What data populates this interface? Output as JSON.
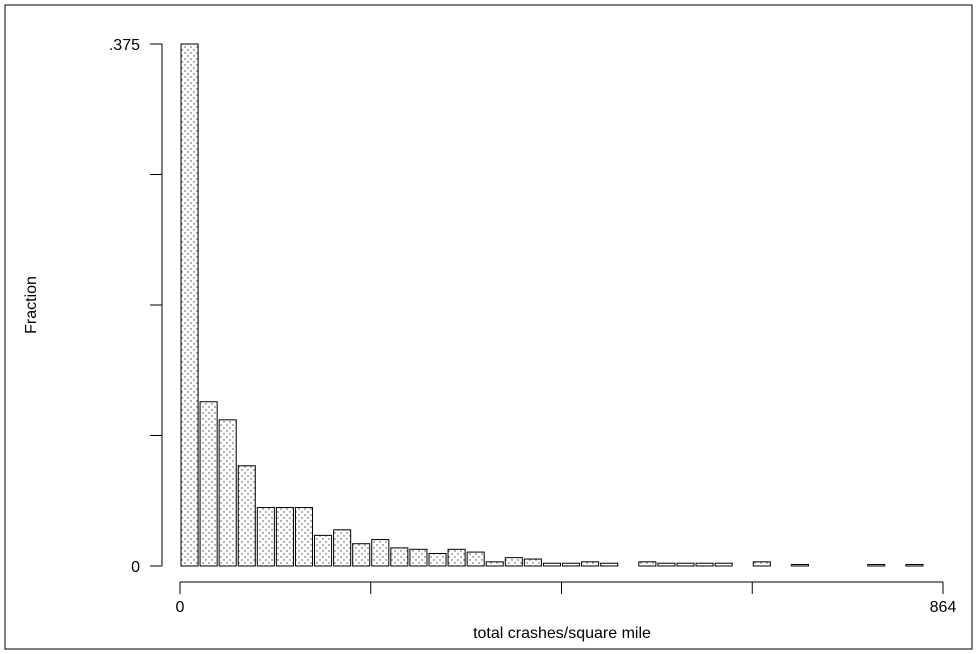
{
  "chart_data": {
    "type": "bar",
    "title": "",
    "xlabel": "total crashes/square mile",
    "ylabel": "Fraction",
    "xlim": [
      0,
      864
    ],
    "ylim": [
      0,
      0.375
    ],
    "x_tick_labels": [
      "0",
      "864"
    ],
    "y_tick_labels": [
      ".375",
      "0"
    ],
    "bin_width": 21.6,
    "series": [
      {
        "values": [
          0.375,
          0.118,
          0.105,
          0.072,
          0.042,
          0.042,
          0.042,
          0.022,
          0.026,
          0.016,
          0.019,
          0.013,
          0.012,
          0.009,
          0.012,
          0.01,
          0.003,
          0.006,
          0.005,
          0.002,
          0.002,
          0.003,
          0.002,
          0,
          0.003,
          0.002,
          0.002,
          0.002,
          0.002,
          0,
          0.003,
          0,
          0.0005,
          0,
          0,
          0,
          0.0005,
          0,
          0.0005,
          0,
          0,
          0,
          0,
          0,
          0,
          0,
          0,
          0,
          0,
          0.0005
        ]
      }
    ]
  }
}
